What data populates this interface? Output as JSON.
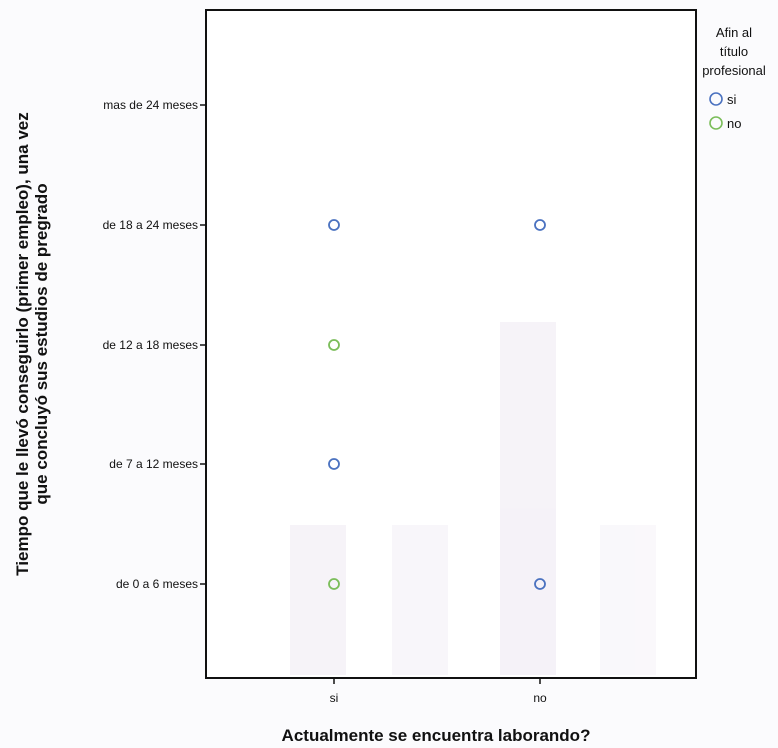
{
  "chart_data": {
    "type": "scatter",
    "title": "",
    "xlabel": "Actualmente se encuentra laborando?",
    "ylabel_lines": [
      "Tiempo que le llevó conseguirlo (primer empleo), una vez",
      "que concluyó sus estudios de pregrado"
    ],
    "x_categories": [
      "si",
      "no"
    ],
    "y_categories": [
      "de 0 a 6 meses",
      "de 7 a 12 meses",
      "de 12 a 18 meses",
      "de 18 a 24 meses",
      "mas de 24 meses"
    ],
    "legend_title_lines": [
      "Afin al",
      "título",
      "profesional"
    ],
    "series": [
      {
        "name": "si",
        "color": "#4b72c0",
        "points": [
          {
            "x": "si",
            "y": "de 18 a 24 meses"
          },
          {
            "x": "no",
            "y": "de 18 a 24 meses"
          },
          {
            "x": "si",
            "y": "de 7 a 12 meses"
          },
          {
            "x": "no",
            "y": "de 0 a 6 meses"
          }
        ]
      },
      {
        "name": "no",
        "color": "#7bbd5a",
        "points": [
          {
            "x": "si",
            "y": "de 12 a 18 meses"
          },
          {
            "x": "si",
            "y": "de 0 a 6 meses"
          }
        ]
      }
    ],
    "grid": false,
    "legend_position": "top-right"
  }
}
